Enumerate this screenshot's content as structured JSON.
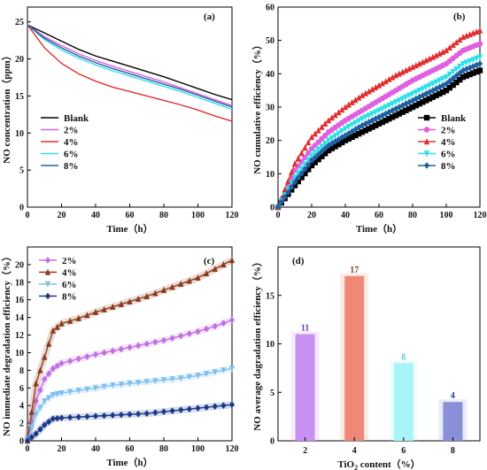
{
  "colors": {
    "Blank": "#000000",
    "2%": "#e060e0",
    "4%": "#e03030",
    "6%": "#30e0e8",
    "8%": "#2060a0",
    "4%_c": "#8b3a1a",
    "6%_c": "#80c0f0",
    "8%_c": "#1a3a8a",
    "2%_c": "#c070e0"
  },
  "chart_data": [
    {
      "type": "line",
      "panel_label": "(a)",
      "xlabel": "Time（h）",
      "ylabel": "NO concentration（ppm）",
      "xlim": [
        0,
        120
      ],
      "ylim": [
        0,
        27
      ],
      "xticks": [
        0,
        20,
        40,
        60,
        80,
        100,
        120
      ],
      "yticks": [
        0,
        5,
        10,
        15,
        20,
        25
      ],
      "legend_position": "left-middle",
      "markers": false,
      "x": [
        0,
        10,
        20,
        30,
        40,
        50,
        60,
        70,
        80,
        90,
        100,
        110,
        120
      ],
      "series": [
        {
          "name": "Blank",
          "color_key": "Blank",
          "values": [
            24.6,
            23.5,
            22.4,
            21.3,
            20.4,
            19.7,
            19.0,
            18.3,
            17.6,
            16.8,
            16.0,
            15.2,
            14.5
          ]
        },
        {
          "name": "2%",
          "color_key": "2%",
          "values": [
            24.6,
            23.0,
            21.8,
            20.7,
            19.8,
            19.0,
            18.3,
            17.6,
            16.9,
            16.1,
            15.3,
            14.5,
            13.7
          ]
        },
        {
          "name": "4%",
          "color_key": "4%",
          "values": [
            24.6,
            21.5,
            19.4,
            18.0,
            17.0,
            16.2,
            15.6,
            15.0,
            14.4,
            13.8,
            13.1,
            12.3,
            11.6
          ]
        },
        {
          "name": "6%",
          "color_key": "6%",
          "values": [
            24.6,
            22.6,
            21.2,
            20.1,
            19.2,
            18.4,
            17.7,
            17.0,
            16.3,
            15.6,
            14.8,
            14.0,
            13.2
          ]
        },
        {
          "name": "8%",
          "color_key": "8%",
          "values": [
            24.6,
            22.8,
            21.5,
            20.4,
            19.5,
            18.7,
            18.0,
            17.3,
            16.6,
            15.9,
            15.1,
            14.3,
            13.5
          ]
        }
      ]
    },
    {
      "type": "line",
      "panel_label": "(b)",
      "xlabel": "Time（h）",
      "ylabel": "NO cumulative efficiency（%）",
      "xlim": [
        0,
        120
      ],
      "ylim": [
        0,
        60
      ],
      "xticks": [
        0,
        20,
        40,
        60,
        80,
        100,
        120
      ],
      "yticks": [
        0,
        10,
        20,
        30,
        40,
        50,
        60
      ],
      "legend_position": "right-middle",
      "markers": true,
      "x": [
        0,
        10,
        20,
        30,
        40,
        50,
        60,
        70,
        80,
        90,
        100,
        110,
        120
      ],
      "series": [
        {
          "name": "Blank",
          "color_key": "Blank",
          "marker": "square",
          "values": [
            0,
            6.5,
            12.5,
            17.0,
            20.0,
            22.5,
            25.0,
            27.5,
            30.0,
            32.5,
            35.0,
            39.0,
            41.0
          ]
        },
        {
          "name": "2%",
          "color_key": "2%",
          "marker": "circle",
          "values": [
            0,
            11.0,
            17.5,
            22.5,
            26.0,
            29.0,
            32.0,
            35.0,
            38.0,
            40.5,
            43.0,
            47.0,
            49.0
          ]
        },
        {
          "name": "4%",
          "color_key": "4%",
          "marker": "triangle-up",
          "values": [
            0,
            13.0,
            21.0,
            26.0,
            30.0,
            33.5,
            36.5,
            39.5,
            42.0,
            44.5,
            47.0,
            51.0,
            53.0
          ]
        },
        {
          "name": "6%",
          "color_key": "6%",
          "marker": "triangle-down",
          "values": [
            0,
            9.0,
            15.5,
            20.0,
            23.5,
            26.5,
            29.0,
            31.5,
            34.0,
            36.5,
            39.0,
            43.0,
            45.0
          ]
        },
        {
          "name": "8%",
          "color_key": "8%",
          "marker": "diamond",
          "values": [
            0,
            7.5,
            14.0,
            18.5,
            21.5,
            24.5,
            27.0,
            29.5,
            32.0,
            34.5,
            37.0,
            41.0,
            43.0
          ]
        }
      ]
    },
    {
      "type": "line",
      "panel_label": "(c)",
      "xlabel": "Time（h）",
      "ylabel": "NO immediate degradation efficiency（%）",
      "xlim": [
        0,
        120
      ],
      "ylim": [
        0,
        22
      ],
      "xticks": [
        0,
        20,
        40,
        60,
        80,
        100,
        120
      ],
      "yticks": [
        0,
        2,
        4,
        6,
        8,
        10,
        12,
        14,
        16,
        18,
        20
      ],
      "legend_position": "top-left",
      "markers": true,
      "x": [
        0,
        5,
        10,
        15,
        20,
        30,
        40,
        50,
        60,
        70,
        80,
        90,
        100,
        110,
        120
      ],
      "series": [
        {
          "name": "2%",
          "color_key": "2%_c",
          "marker": "diamond",
          "values": [
            0,
            4.5,
            7.0,
            8.2,
            8.8,
            9.3,
            9.8,
            10.2,
            10.6,
            11.0,
            11.4,
            11.9,
            12.4,
            13.0,
            13.7
          ]
        },
        {
          "name": "4%",
          "color_key": "4%_c",
          "marker": "triangle-up",
          "values": [
            0,
            6.5,
            9.5,
            12.5,
            13.3,
            13.9,
            14.6,
            15.2,
            15.8,
            16.4,
            17.1,
            17.8,
            18.5,
            19.5,
            20.5
          ]
        },
        {
          "name": "6%",
          "color_key": "6%_c",
          "marker": "triangle-down",
          "values": [
            0,
            3.0,
            4.5,
            5.2,
            5.4,
            5.7,
            6.0,
            6.3,
            6.5,
            6.7,
            6.9,
            7.1,
            7.4,
            7.8,
            8.2
          ]
        },
        {
          "name": "8%",
          "color_key": "8%_c",
          "marker": "diamond",
          "values": [
            0,
            0.8,
            1.8,
            2.5,
            2.6,
            2.7,
            2.8,
            2.9,
            3.0,
            3.1,
            3.3,
            3.5,
            3.7,
            3.9,
            4.1
          ]
        }
      ]
    },
    {
      "type": "bar",
      "panel_label": "(d)",
      "xlabel_main": "TiO",
      "xlabel_sub": "2",
      "xlabel_rest": " content（%）",
      "ylabel": "NO average dagradation efficiency（%）",
      "ylim": [
        0,
        20
      ],
      "yticks": [
        0,
        5,
        10,
        15
      ],
      "categories": [
        "2",
        "4",
        "6",
        "8"
      ],
      "values": [
        11,
        17,
        8,
        4
      ],
      "data_labels": [
        "11",
        "17",
        "8",
        "4"
      ],
      "bar_colors": [
        "#c890f0",
        "#f08878",
        "#a8f4f8",
        "#8890d8"
      ],
      "label_colors": [
        "#6a3ab0",
        "#8b3a1a",
        "#60c8e0",
        "#2040a0"
      ]
    }
  ]
}
